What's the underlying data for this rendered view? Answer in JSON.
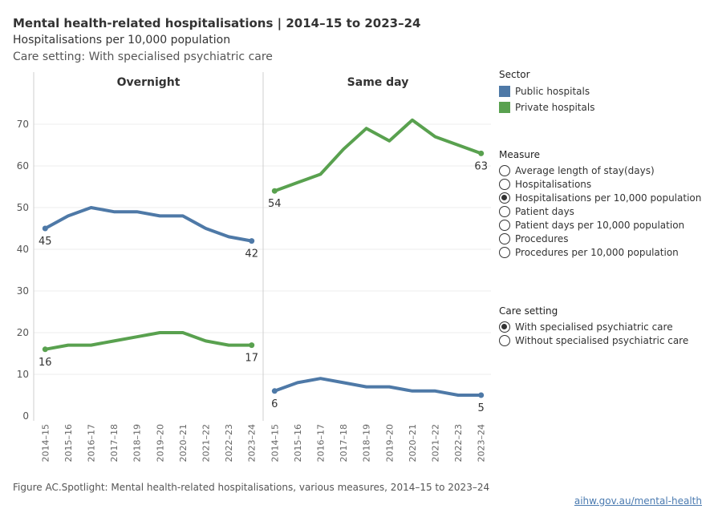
{
  "header": {
    "title": "Mental health-related hospitalisations | 2014–15 to 2023–24",
    "subtitle": "Hospitalisations per 10,000 population",
    "care_setting_line": "Care setting: With specialised psychiatric care"
  },
  "legend": {
    "sector_title": "Sector",
    "sectors": [
      {
        "label": "Public hospitals",
        "color": "#4e79a7"
      },
      {
        "label": "Private hospitals",
        "color": "#59a14f"
      }
    ],
    "measure_title": "Measure",
    "measures": [
      {
        "label": "Average length of stay(days)",
        "selected": false
      },
      {
        "label": "Hospitalisations",
        "selected": false
      },
      {
        "label": "Hospitalisations per 10,000 population",
        "selected": true
      },
      {
        "label": "Patient days",
        "selected": false
      },
      {
        "label": "Patient days per 10,000 population",
        "selected": false
      },
      {
        "label": "Procedures",
        "selected": false
      },
      {
        "label": "Procedures per 10,000 population",
        "selected": false
      }
    ],
    "care_title": "Care setting",
    "care_settings": [
      {
        "label": "With specialised psychiatric care",
        "selected": true
      },
      {
        "label": "Without specialised psychiatric care",
        "selected": false
      }
    ]
  },
  "footer": {
    "caption": "Figure AC.Spotlight: Mental health-related hospitalisations, various measures, 2014–15 to 2023–24",
    "link": "aihw.gov.au/mental-health"
  },
  "chart_data": {
    "type": "line",
    "categories": [
      "2014–15",
      "2015–16",
      "2016–17",
      "2017–18",
      "2018–19",
      "2019–20",
      "2020–21",
      "2021–22",
      "2022–23",
      "2023–24"
    ],
    "ylim": [
      0,
      75
    ],
    "yticks": [
      0,
      10,
      20,
      30,
      40,
      50,
      60,
      70
    ],
    "grid": true,
    "legend_position": "right",
    "panels": [
      {
        "title": "Overnight",
        "series": [
          {
            "name": "Public hospitals",
            "color": "#4e79a7",
            "values": [
              45,
              48,
              50,
              49,
              49,
              48,
              48,
              45,
              43,
              42
            ]
          },
          {
            "name": "Private hospitals",
            "color": "#59a14f",
            "values": [
              16,
              17,
              17,
              18,
              19,
              20,
              20,
              18,
              17,
              17
            ]
          }
        ]
      },
      {
        "title": "Same day",
        "series": [
          {
            "name": "Public hospitals",
            "color": "#4e79a7",
            "values": [
              6,
              8,
              9,
              8,
              7,
              7,
              6,
              6,
              5,
              5
            ]
          },
          {
            "name": "Private hospitals",
            "color": "#59a14f",
            "values": [
              54,
              56,
              58,
              64,
              69,
              66,
              71,
              67,
              65,
              63
            ]
          }
        ]
      }
    ]
  }
}
